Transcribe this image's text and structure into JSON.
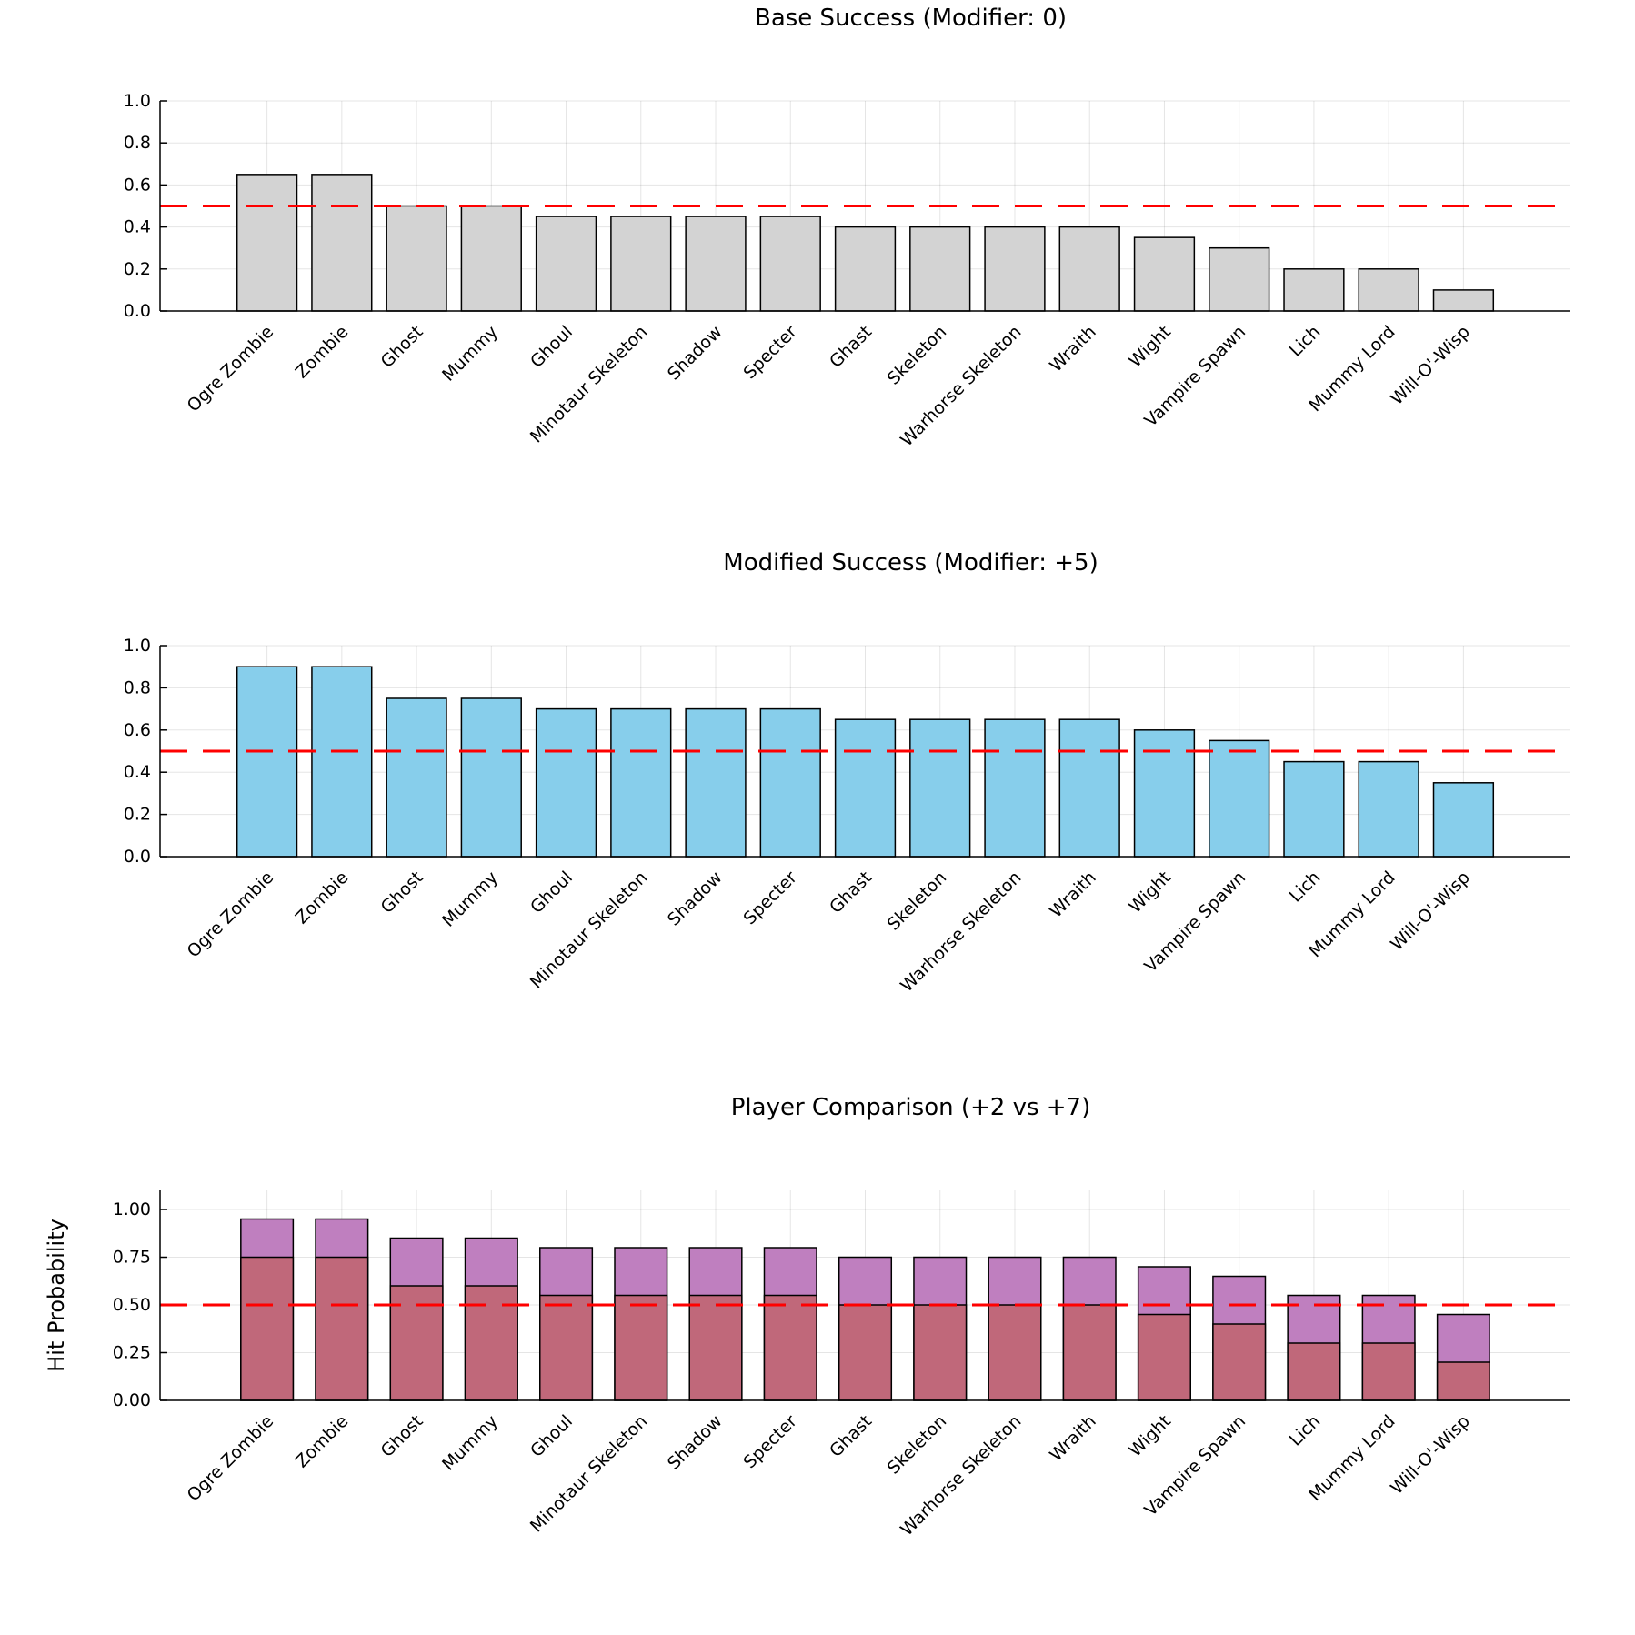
{
  "chart_data": [
    {
      "type": "bar",
      "title": "Base Success (Modifier: 0)",
      "xlabel": "",
      "ylabel": "",
      "ylim": [
        0,
        1.0
      ],
      "yticks": [
        "0.0",
        "0.2",
        "0.4",
        "0.6",
        "0.8",
        "1.0"
      ],
      "grid": true,
      "reference_line": 0.5,
      "reference_color": "#ff0000",
      "categories": [
        "Ogre Zombie",
        "Zombie",
        "Ghost",
        "Mummy",
        "Ghoul",
        "Minotaur Skeleton",
        "Shadow",
        "Specter",
        "Ghast",
        "Skeleton",
        "Warhorse Skeleton",
        "Wraith",
        "Wight",
        "Vampire Spawn",
        "Lich",
        "Mummy Lord",
        "Will-O'-Wisp"
      ],
      "series": [
        {
          "color": "#d3d3d3",
          "values": [
            0.65,
            0.65,
            0.5,
            0.5,
            0.45,
            0.45,
            0.45,
            0.45,
            0.4,
            0.4,
            0.4,
            0.4,
            0.35,
            0.3,
            0.2,
            0.2,
            0.1
          ]
        }
      ]
    },
    {
      "type": "bar",
      "title": "Modified Success (Modifier: +5)",
      "xlabel": "",
      "ylabel": "",
      "ylim": [
        0,
        1.0
      ],
      "yticks": [
        "0.0",
        "0.2",
        "0.4",
        "0.6",
        "0.8",
        "1.0"
      ],
      "grid": true,
      "reference_line": 0.5,
      "reference_color": "#ff0000",
      "categories": [
        "Ogre Zombie",
        "Zombie",
        "Ghost",
        "Mummy",
        "Ghoul",
        "Minotaur Skeleton",
        "Shadow",
        "Specter",
        "Ghast",
        "Skeleton",
        "Warhorse Skeleton",
        "Wraith",
        "Wight",
        "Vampire Spawn",
        "Lich",
        "Mummy Lord",
        "Will-O'-Wisp"
      ],
      "series": [
        {
          "color": "#87ceeb",
          "values": [
            0.9,
            0.9,
            0.75,
            0.75,
            0.7,
            0.7,
            0.7,
            0.7,
            0.65,
            0.65,
            0.65,
            0.65,
            0.6,
            0.55,
            0.45,
            0.45,
            0.35
          ]
        }
      ]
    },
    {
      "type": "bar",
      "title": "Player Comparison (+2 vs +7)",
      "xlabel": "",
      "ylabel": "Hit Probability",
      "ylim": [
        0,
        1.1
      ],
      "yticks": [
        "0.00",
        "0.25",
        "0.50",
        "0.75",
        "1.00"
      ],
      "grid": true,
      "reference_line": 0.5,
      "reference_color": "#ff0000",
      "categories": [
        "Ogre Zombie",
        "Zombie",
        "Ghost",
        "Mummy",
        "Ghoul",
        "Minotaur Skeleton",
        "Shadow",
        "Specter",
        "Ghast",
        "Skeleton",
        "Warhorse Skeleton",
        "Wraith",
        "Wight",
        "Vampire Spawn",
        "Lich",
        "Mummy Lord",
        "Will-O'-Wisp"
      ],
      "series": [
        {
          "color": "#bf7fbf",
          "values": [
            0.95,
            0.95,
            0.85,
            0.85,
            0.8,
            0.8,
            0.8,
            0.8,
            0.75,
            0.75,
            0.75,
            0.75,
            0.7,
            0.65,
            0.55,
            0.55,
            0.45
          ]
        },
        {
          "color": "#c0687a",
          "values": [
            0.75,
            0.75,
            0.6,
            0.6,
            0.55,
            0.55,
            0.55,
            0.55,
            0.5,
            0.5,
            0.5,
            0.5,
            0.45,
            0.4,
            0.3,
            0.3,
            0.2
          ]
        }
      ]
    }
  ]
}
